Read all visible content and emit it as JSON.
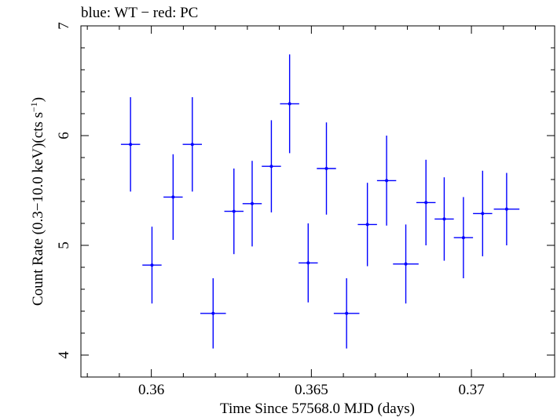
{
  "chart_data": {
    "type": "scatter",
    "title": "blue: WT − red: PC",
    "xlabel": "Time Since 57568.0 MJD (days)",
    "ylabel_main": "Count Rate (0.3−10.0 keV)(cts s",
    "ylabel_sup": "−1",
    "ylabel_close": ")",
    "xlim": [
      0.3578,
      0.3726
    ],
    "ylim": [
      3.8,
      7.0
    ],
    "x_ticks": [
      0.36,
      0.365,
      0.37
    ],
    "x_tick_labels": [
      "0.36",
      "0.365",
      "0.37"
    ],
    "y_ticks": [
      4,
      5,
      6,
      7
    ],
    "y_tick_labels": [
      "4",
      "5",
      "6",
      "7"
    ],
    "color": "#0000ff",
    "series": [
      {
        "points": [
          {
            "x": 0.35935,
            "xerr": 0.0003,
            "y": 5.92,
            "yerr": 0.43
          },
          {
            "x": 0.36002,
            "xerr": 0.0003,
            "y": 4.82,
            "yerr": 0.35
          },
          {
            "x": 0.36068,
            "xerr": 0.0003,
            "y": 5.44,
            "yerr": 0.39
          },
          {
            "x": 0.36128,
            "xerr": 0.0003,
            "y": 5.92,
            "yerr": 0.43
          },
          {
            "x": 0.36193,
            "xerr": 0.0004,
            "y": 4.38,
            "yerr": 0.32
          },
          {
            "x": 0.36258,
            "xerr": 0.0003,
            "y": 5.31,
            "yerr": 0.39
          },
          {
            "x": 0.36315,
            "xerr": 0.0003,
            "y": 5.38,
            "yerr": 0.39
          },
          {
            "x": 0.36375,
            "xerr": 0.0003,
            "y": 5.72,
            "yerr": 0.42
          },
          {
            "x": 0.36432,
            "xerr": 0.0003,
            "y": 6.29,
            "yerr": 0.45
          },
          {
            "x": 0.3649,
            "xerr": 0.0003,
            "y": 4.84,
            "yerr": 0.36
          },
          {
            "x": 0.36547,
            "xerr": 0.0003,
            "y": 5.7,
            "yerr": 0.42
          },
          {
            "x": 0.3661,
            "xerr": 0.0004,
            "y": 4.38,
            "yerr": 0.32
          },
          {
            "x": 0.36675,
            "xerr": 0.0003,
            "y": 5.19,
            "yerr": 0.38
          },
          {
            "x": 0.36735,
            "xerr": 0.0003,
            "y": 5.59,
            "yerr": 0.41
          },
          {
            "x": 0.36795,
            "xerr": 0.0004,
            "y": 4.83,
            "yerr": 0.36
          },
          {
            "x": 0.36858,
            "xerr": 0.0003,
            "y": 5.39,
            "yerr": 0.39
          },
          {
            "x": 0.36915,
            "xerr": 0.0003,
            "y": 5.24,
            "yerr": 0.38
          },
          {
            "x": 0.36975,
            "xerr": 0.0003,
            "y": 5.07,
            "yerr": 0.37
          },
          {
            "x": 0.37035,
            "xerr": 0.0003,
            "y": 5.29,
            "yerr": 0.39
          },
          {
            "x": 0.3711,
            "xerr": 0.0004,
            "y": 5.33,
            "yerr": 0.33
          }
        ]
      }
    ]
  }
}
